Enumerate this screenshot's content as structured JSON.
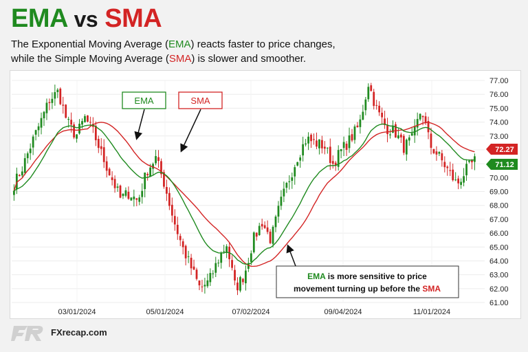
{
  "header": {
    "title_ema": "EMA",
    "title_vs": "vs",
    "title_sma": "SMA",
    "subtitle_l1_a": "The Exponential Moving Average (",
    "subtitle_l1_b": "EMA",
    "subtitle_l1_c": ") reacts faster to price changes,",
    "subtitle_l2_a": "while the Simple Moving Average (",
    "subtitle_l2_b": "SMA",
    "subtitle_l2_c": ") is slower and smoother."
  },
  "chart_data": {
    "type": "candlestick",
    "x_tick_labels": [
      "03/01/2024",
      "05/01/2024",
      "07/02/2024",
      "09/04/2024",
      "11/01/2024"
    ],
    "y_tick_labels": [
      "77.00",
      "76.00",
      "75.00",
      "74.00",
      "73.00",
      "72.00",
      "71.00",
      "70.00",
      "69.00",
      "68.00",
      "67.00",
      "66.00",
      "65.00",
      "64.00",
      "63.00",
      "62.00",
      "61.00"
    ],
    "ylim": [
      61,
      77
    ],
    "series": [
      {
        "name": "EMA",
        "color": "#1f8a1f",
        "last_value": "71.12"
      },
      {
        "name": "SMA",
        "color": "#d32424",
        "last_value": "72.27"
      }
    ],
    "close_path": [
      69.5,
      70.8,
      72.5,
      74.0,
      75.6,
      76.2,
      74.0,
      73.0,
      74.3,
      73.2,
      71.5,
      70.0,
      68.5,
      68.9,
      68.3,
      70.5,
      71.4,
      69.5,
      67.0,
      65.0,
      63.5,
      62.0,
      62.5,
      64.0,
      65.2,
      62.0,
      63.0,
      65.5,
      66.8,
      65.5,
      68.0,
      69.8,
      71.5,
      72.8,
      72.5,
      72.3,
      71.0,
      72.0,
      72.8,
      73.8,
      76.8,
      74.8,
      73.6,
      73.3,
      72.2,
      72.8,
      75.0,
      72.3,
      71.5,
      70.5,
      69.5,
      70.5,
      71.2
    ],
    "legend_boxes": [
      "EMA",
      "SMA"
    ],
    "annotation": {
      "part1": "EMA",
      "part2": " is more sensitive to price",
      "part3": "movement turning up before the ",
      "part4": "SMA"
    }
  },
  "footer": {
    "brand": "FXrecap.com"
  },
  "colors": {
    "up": "#1f8a1f",
    "down": "#d32424",
    "background": "#f2f2f2"
  }
}
